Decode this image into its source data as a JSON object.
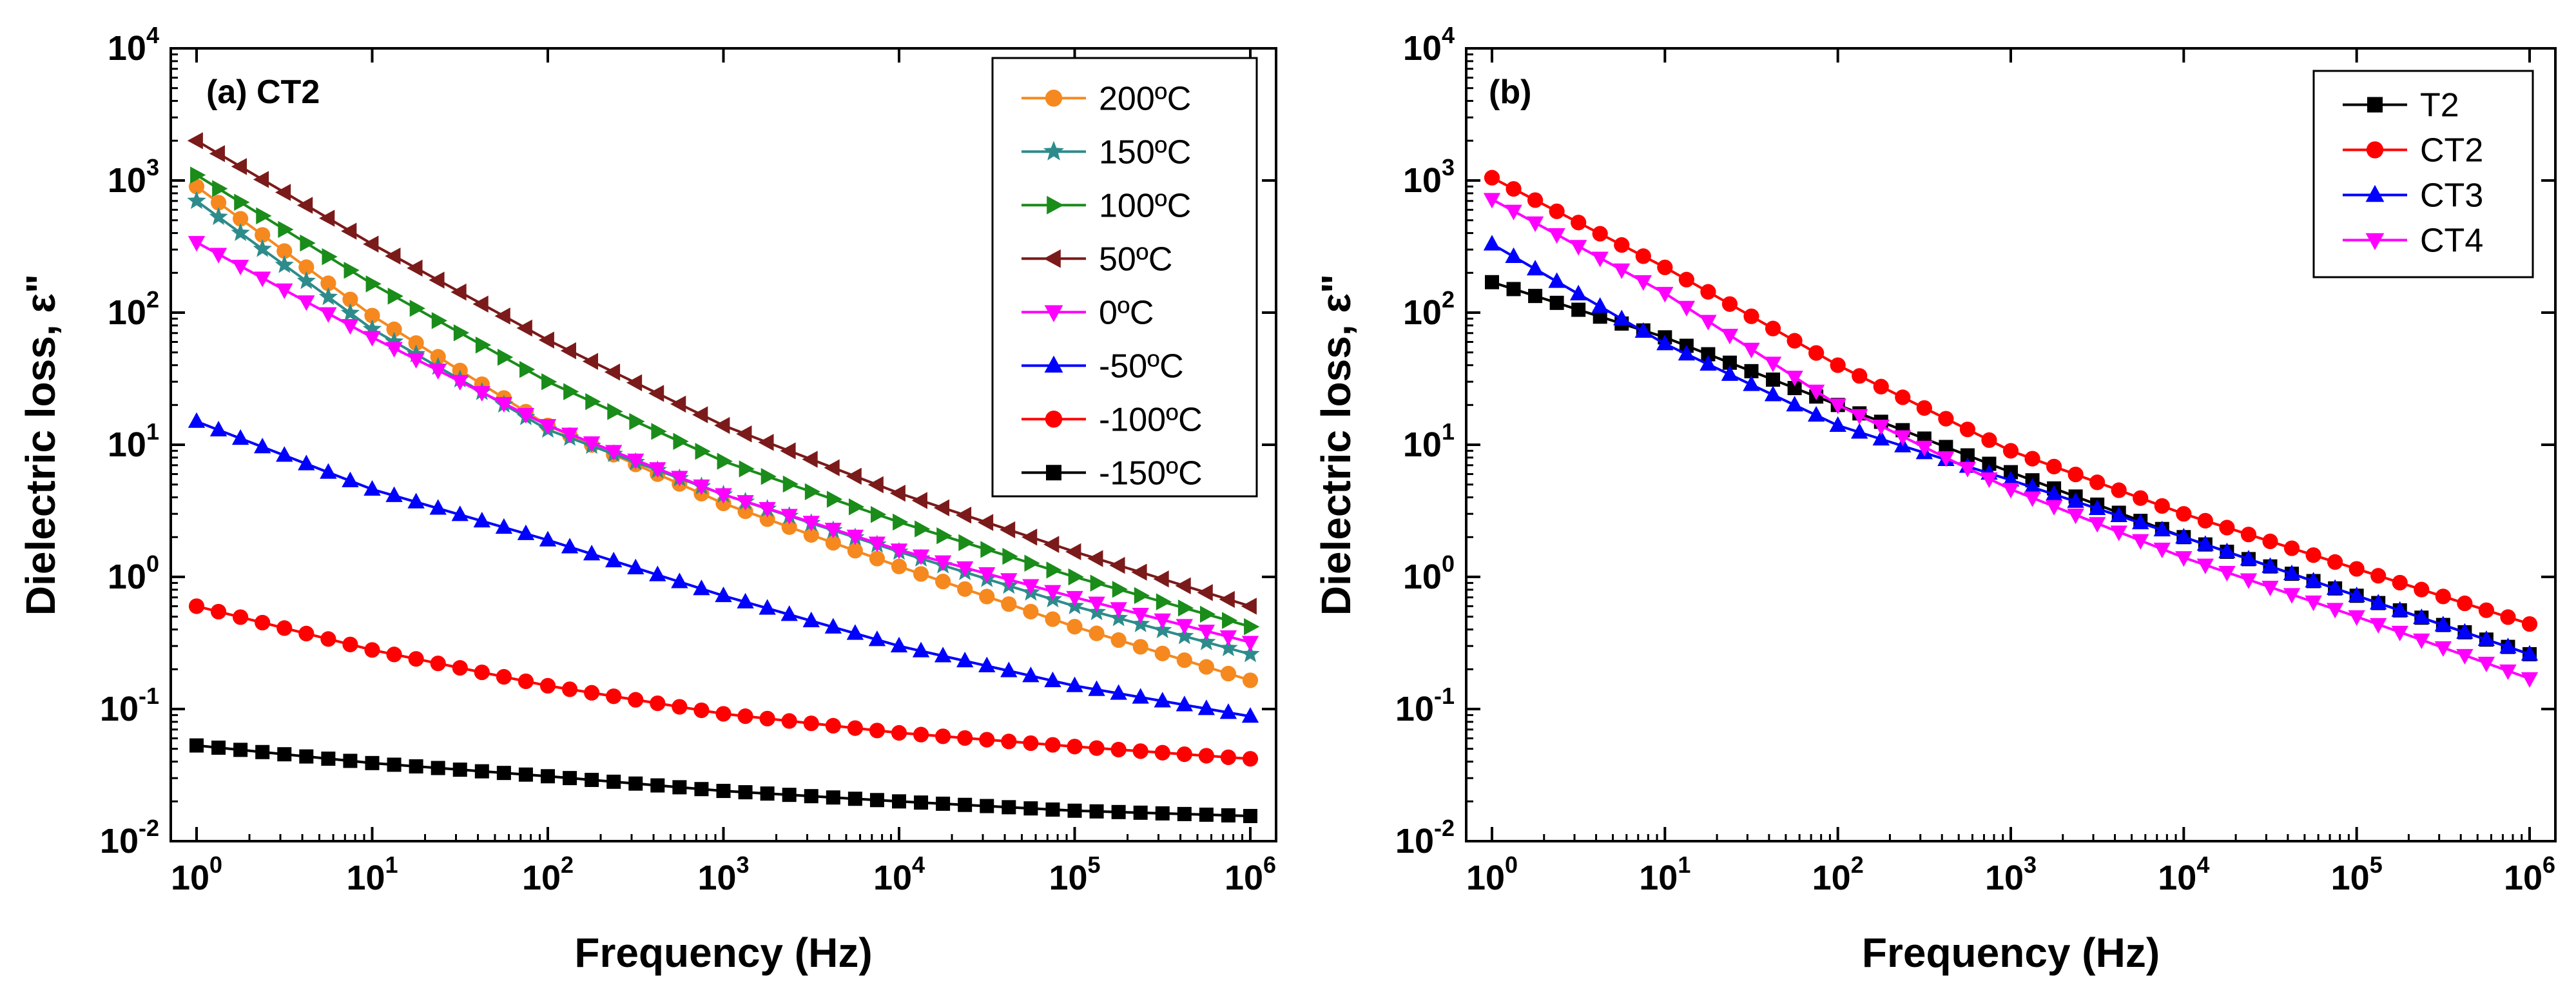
{
  "chart_data": [
    {
      "type": "line",
      "panel_label": "(a) CT2",
      "xlabel": "Frequency (Hz)",
      "ylabel": "Dielectric loss, ε\"",
      "xscale": "log",
      "yscale": "log",
      "xlim": [
        1,
        1000000
      ],
      "ylim": [
        0.01,
        10000
      ],
      "x_ticks": [
        {
          "base": "10",
          "exp": "0"
        },
        {
          "base": "10",
          "exp": "1"
        },
        {
          "base": "10",
          "exp": "2"
        },
        {
          "base": "10",
          "exp": "3"
        },
        {
          "base": "10",
          "exp": "4"
        },
        {
          "base": "10",
          "exp": "5"
        },
        {
          "base": "10",
          "exp": "6"
        }
      ],
      "y_ticks": [
        {
          "base": "10",
          "exp": "-2"
        },
        {
          "base": "10",
          "exp": "-1"
        },
        {
          "base": "10",
          "exp": "0"
        },
        {
          "base": "10",
          "exp": "1"
        },
        {
          "base": "10",
          "exp": "2"
        },
        {
          "base": "10",
          "exp": "3"
        },
        {
          "base": "10",
          "exp": "4"
        }
      ],
      "legend_position": "top-right",
      "series": [
        {
          "name": "200ºC",
          "color": "#f5891f",
          "marker": "circle",
          "x": [
            1,
            10,
            100,
            1000,
            10000,
            100000,
            1000000
          ],
          "values": [
            900,
            95,
            14,
            3.6,
            1.2,
            0.42,
            0.165
          ]
        },
        {
          "name": "150ºC",
          "color": "#2e8b8b",
          "marker": "star",
          "x": [
            1,
            10,
            100,
            1000,
            10000,
            100000,
            1000000
          ],
          "values": [
            700,
            75,
            13,
            4.2,
            1.55,
            0.6,
            0.26
          ]
        },
        {
          "name": "100ºC",
          "color": "#1a8c1a",
          "marker": "triangle-right",
          "x": [
            1,
            10,
            100,
            1000,
            10000,
            100000,
            1000000
          ],
          "values": [
            1100,
            165,
            30,
            7.5,
            2.6,
            1.0,
            0.42
          ]
        },
        {
          "name": "50ºC",
          "color": "#7b1a1a",
          "marker": "triangle-left",
          "x": [
            1,
            10,
            100,
            1000,
            10000,
            100000,
            1000000
          ],
          "values": [
            2000,
            330,
            62,
            14,
            4.3,
            1.55,
            0.6
          ]
        },
        {
          "name": "0ºC",
          "color": "#ff00ff",
          "marker": "triangle-down",
          "x": [
            1,
            10,
            100,
            1000,
            10000,
            100000,
            1000000
          ],
          "values": [
            340,
            65,
            14,
            4.2,
            1.6,
            0.7,
            0.32
          ]
        },
        {
          "name": "-50ºC",
          "color": "#0000ff",
          "marker": "triangle-up",
          "x": [
            1,
            10,
            100,
            1000,
            10000,
            100000,
            1000000
          ],
          "values": [
            15,
            4.6,
            1.9,
            0.72,
            0.3,
            0.15,
            0.088
          ]
        },
        {
          "name": "-100ºC",
          "color": "#ff0000",
          "marker": "circle",
          "x": [
            1,
            10,
            100,
            1000,
            10000,
            100000,
            1000000
          ],
          "values": [
            0.6,
            0.28,
            0.15,
            0.092,
            0.066,
            0.052,
            0.042
          ]
        },
        {
          "name": "-150ºC",
          "color": "#000000",
          "marker": "square",
          "x": [
            1,
            10,
            100,
            1000,
            10000,
            100000,
            1000000
          ],
          "values": [
            0.053,
            0.039,
            0.031,
            0.024,
            0.02,
            0.017,
            0.0155
          ]
        }
      ]
    },
    {
      "type": "line",
      "panel_label": "(b)",
      "xlabel": "Frequency (Hz)",
      "ylabel": "Dielectric loss, ε\"",
      "xscale": "log",
      "yscale": "log",
      "xlim": [
        1,
        1000000
      ],
      "ylim": [
        0.01,
        10000
      ],
      "x_ticks": [
        {
          "base": "10",
          "exp": "0"
        },
        {
          "base": "10",
          "exp": "1"
        },
        {
          "base": "10",
          "exp": "2"
        },
        {
          "base": "10",
          "exp": "3"
        },
        {
          "base": "10",
          "exp": "4"
        },
        {
          "base": "10",
          "exp": "5"
        },
        {
          "base": "10",
          "exp": "6"
        }
      ],
      "y_ticks": [
        {
          "base": "10",
          "exp": "-2"
        },
        {
          "base": "10",
          "exp": "-1"
        },
        {
          "base": "10",
          "exp": "0"
        },
        {
          "base": "10",
          "exp": "1"
        },
        {
          "base": "10",
          "exp": "2"
        },
        {
          "base": "10",
          "exp": "3"
        },
        {
          "base": "10",
          "exp": "4"
        }
      ],
      "legend_position": "top-right",
      "series": [
        {
          "name": "T2",
          "color": "#000000",
          "marker": "square",
          "x": [
            1,
            10,
            100,
            1000,
            10000,
            100000,
            1000000
          ],
          "values": [
            170,
            65,
            20,
            6.2,
            2.0,
            0.72,
            0.26
          ]
        },
        {
          "name": "CT2",
          "color": "#ff0000",
          "marker": "circle",
          "x": [
            1,
            10,
            100,
            1000,
            10000,
            100000,
            1000000
          ],
          "values": [
            1050,
            220,
            40,
            9.0,
            3.0,
            1.15,
            0.44
          ]
        },
        {
          "name": "CT3",
          "color": "#0000ff",
          "marker": "triangle-up",
          "x": [
            1,
            10,
            100,
            1000,
            10000,
            100000,
            1000000
          ],
          "values": [
            330,
            58,
            14,
            5.4,
            2.0,
            0.72,
            0.26
          ]
        },
        {
          "name": "CT4",
          "color": "#ff00ff",
          "marker": "triangle-down",
          "x": [
            1,
            10,
            100,
            1000,
            10000,
            100000,
            1000000
          ],
          "values": [
            720,
            140,
            20,
            4.6,
            1.4,
            0.5,
            0.17
          ]
        }
      ]
    }
  ]
}
